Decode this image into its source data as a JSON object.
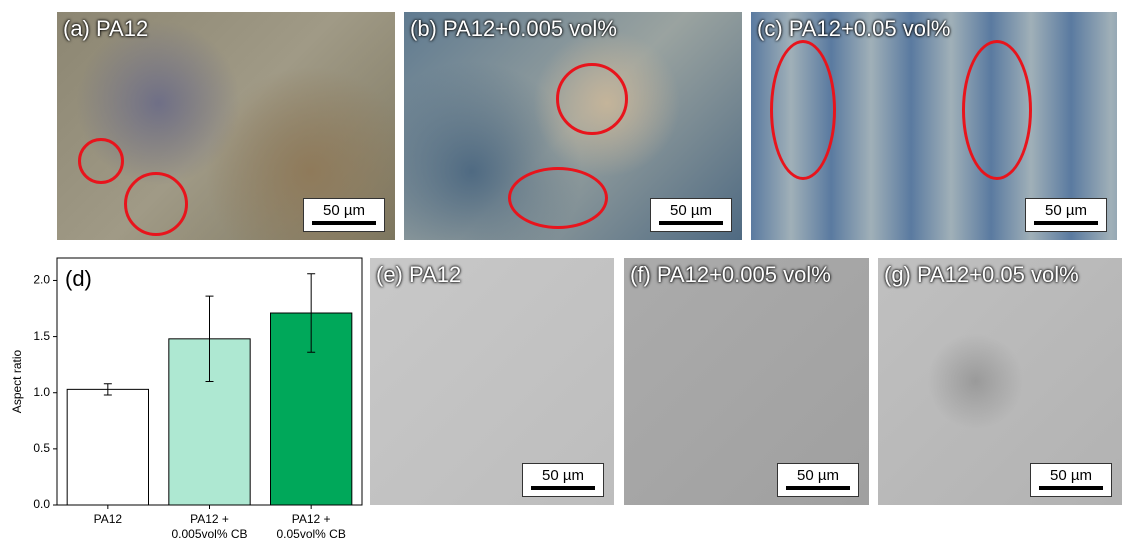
{
  "micrographs": [
    {
      "label": "(a) PA12",
      "scale_bar": "50 µm"
    },
    {
      "label": "(b) PA12+0.005 vol%",
      "scale_bar": "50 µm"
    },
    {
      "label": "(c) PA12+0.05 vol%",
      "scale_bar": "50 µm"
    },
    {
      "label": "(e) PA12",
      "scale_bar": "50 µm"
    },
    {
      "label": "(f) PA12+0.005 vol%",
      "scale_bar": "50 µm"
    },
    {
      "label": "(g) PA12+0.05 vol%",
      "scale_bar": "50 µm"
    }
  ],
  "chart_data": {
    "type": "bar",
    "panel_label": "(d)",
    "ylabel": "Aspect ratio",
    "categories": [
      "PA12",
      "PA12 +\n0.005vol% CB",
      "PA12 +\n0.05vol% CB"
    ],
    "values": [
      1.03,
      1.48,
      1.71
    ],
    "errors": [
      0.05,
      0.38,
      0.35
    ],
    "colors": [
      "#ffffff",
      "#aee8d2",
      "#00a85a"
    ],
    "ylim": [
      0,
      2.2
    ],
    "yticks": [
      {
        "value": 0,
        "label": "0.0"
      },
      {
        "value": 0.5,
        "label": "0.5"
      },
      {
        "value": 1,
        "label": "1.0"
      },
      {
        "value": 1.5,
        "label": "1.5"
      },
      {
        "value": 2,
        "label": "2.0"
      }
    ]
  }
}
